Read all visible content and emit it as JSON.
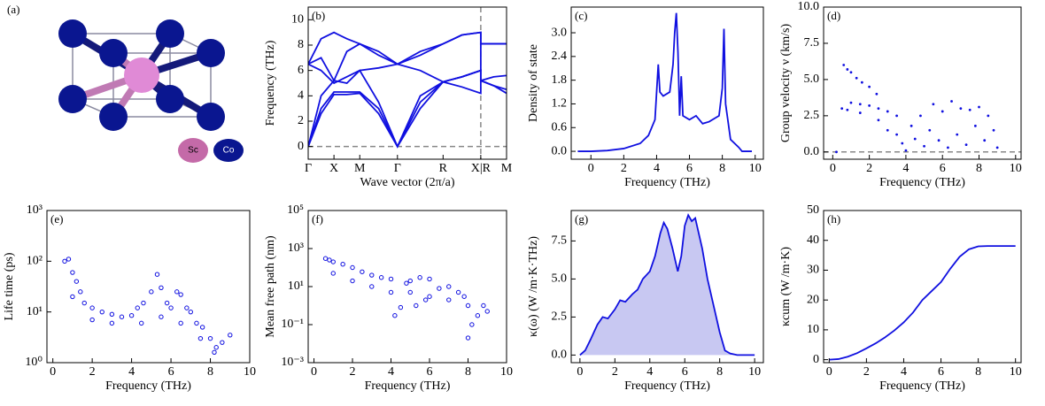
{
  "structure": {
    "label": "(a)",
    "legend": [
      "Sc",
      "Co"
    ]
  },
  "chart_data": [
    {
      "type": "line",
      "annotation": "(b)",
      "xlabel": "Wave vector (2π/a)",
      "ylabel": "Frequency (THz)",
      "x": [
        0,
        0.065,
        0.13,
        0.195,
        0.26,
        0.355,
        0.45,
        0.565,
        0.68,
        0.775,
        0.87,
        0.87,
        0.935,
        1.0
      ],
      "series": [
        {
          "color": "#1010e0",
          "values": [
            0,
            2.6,
            4.1,
            4.1,
            4.2,
            2.6,
            0,
            3.0,
            5.1,
            4.7,
            4.2,
            5.2,
            4.8,
            4.2
          ]
        },
        {
          "color": "#1010e0",
          "values": [
            0,
            3.0,
            4.3,
            4.3,
            4.3,
            3.0,
            0,
            3.5,
            5.1,
            5.5,
            6.0,
            5.2,
            5.5,
            5.6
          ]
        },
        {
          "color": "#1010e0",
          "values": [
            0,
            4.0,
            5.2,
            5.0,
            6.0,
            3.5,
            0,
            4.0,
            5.1,
            5.5,
            6.0,
            5.2,
            4.8,
            4.5
          ]
        },
        {
          "color": "#1010e0",
          "values": [
            6.5,
            6.0,
            5.0,
            5.5,
            6.0,
            6.2,
            6.5,
            6.0,
            5.1,
            5.5,
            6.0,
            8.1,
            8.1,
            8.1
          ]
        },
        {
          "color": "#1010e0",
          "values": [
            6.5,
            7.0,
            5.2,
            7.5,
            8.1,
            7.2,
            6.5,
            7.2,
            8.1,
            8.8,
            9.0,
            8.1,
            8.1,
            8.1
          ]
        },
        {
          "color": "#1010e0",
          "values": [
            6.5,
            8.5,
            9.0,
            8.5,
            8.1,
            7.5,
            6.5,
            7.5,
            8.1,
            8.8,
            9.0,
            8.1,
            8.1,
            8.1
          ]
        }
      ],
      "xlim": [
        0,
        1
      ],
      "ylim": [
        -1,
        11
      ],
      "xticks": [
        {
          "value": 0,
          "label": "Γ"
        },
        {
          "value": 0.13,
          "label": "X"
        },
        {
          "value": 0.26,
          "label": "M"
        },
        {
          "value": 0.45,
          "label": "Γ"
        },
        {
          "value": 0.68,
          "label": "R"
        },
        {
          "value": 0.87,
          "label": "X|R"
        },
        {
          "value": 1.0,
          "label": "M"
        }
      ],
      "yticks": [
        0,
        2,
        4,
        6,
        8,
        10
      ],
      "hlines": [
        0
      ],
      "vlines": [
        0.87
      ]
    },
    {
      "type": "line",
      "annotation": "(c)",
      "xlabel": "Frequency (THz)",
      "ylabel": "Density of state",
      "color": "#1010e0",
      "x": [
        -0.8,
        0,
        1,
        2,
        3,
        3.5,
        3.9,
        4.1,
        4.2,
        4.4,
        4.8,
        5.0,
        5.1,
        5.2,
        5.3,
        5.4,
        5.5,
        5.6,
        6.0,
        6.4,
        6.8,
        7.2,
        7.8,
        8.0,
        8.1,
        8.2,
        8.5,
        9.0,
        9.2,
        9.8
      ],
      "values": [
        0,
        0,
        0.02,
        0.07,
        0.2,
        0.4,
        0.8,
        2.2,
        1.5,
        1.4,
        1.5,
        2.2,
        3.0,
        3.5,
        2.5,
        0.9,
        1.9,
        0.9,
        0.8,
        0.9,
        0.7,
        0.75,
        0.9,
        1.6,
        3.1,
        1.2,
        0.3,
        0.1,
        0,
        0
      ],
      "xlim": [
        -1.2,
        10.5
      ],
      "ylim": [
        -0.2,
        3.65
      ],
      "xticks": [
        0,
        2,
        4,
        6,
        8,
        10
      ],
      "yticks": [
        {
          "value": 0,
          "label": "0.0"
        },
        0.6,
        1.2,
        1.8,
        2.4,
        {
          "value": 3,
          "label": "3.0"
        }
      ]
    },
    {
      "type": "scatter",
      "annotation": "(d)",
      "xlabel": "Frequency (THz)",
      "ylabel": "Group velocity ν (km/s)",
      "color": "#1010e0",
      "marker": "dot",
      "x": [
        0.6,
        0.8,
        1.0,
        1.3,
        1.6,
        2.0,
        2.4,
        0.5,
        1.0,
        1.5,
        2.0,
        2.5,
        3.0,
        3.5,
        0.8,
        1.5,
        2.5,
        3.0,
        3.5,
        3.8,
        4.0,
        4.3,
        4.5,
        4.8,
        5.0,
        5.3,
        5.5,
        5.8,
        6.0,
        6.3,
        6.5,
        6.8,
        7.0,
        7.3,
        7.5,
        7.8,
        8.0,
        8.3,
        8.5,
        8.8,
        9.0,
        0.2
      ],
      "values": [
        6.0,
        5.7,
        5.5,
        5.1,
        4.8,
        4.5,
        4.0,
        3.0,
        3.4,
        3.3,
        3.2,
        3.0,
        2.8,
        2.5,
        2.9,
        2.7,
        2.2,
        1.5,
        1.2,
        0.6,
        0.1,
        1.8,
        0.9,
        2.5,
        0.4,
        1.5,
        3.3,
        0.8,
        2.8,
        0.3,
        3.5,
        1.2,
        3.0,
        0.5,
        2.9,
        1.8,
        3.1,
        0.8,
        2.5,
        1.5,
        0.3,
        0
      ],
      "xlim": [
        -0.5,
        10.3
      ],
      "ylim": [
        -0.5,
        10
      ],
      "xticks": [
        0,
        2,
        4,
        6,
        8,
        10
      ],
      "yticks": [
        {
          "value": 0,
          "label": "0.0"
        },
        2.5,
        {
          "value": 5,
          "label": "5.0"
        },
        7.5,
        {
          "value": 10,
          "label": "10.0"
        }
      ],
      "hlines": [
        0
      ]
    },
    {
      "type": "scatter",
      "annotation": "(e)",
      "xlabel": "Frequency (THz)",
      "ylabel": "Life time (ps)",
      "color": "#1010e0",
      "marker": "open-circle",
      "log_y": true,
      "x": [
        0.6,
        0.8,
        1.0,
        1.2,
        1.4,
        1.6,
        2.0,
        2.5,
        3.0,
        3.5,
        4.0,
        4.3,
        4.6,
        5.0,
        5.3,
        5.5,
        5.8,
        6.0,
        6.3,
        6.5,
        6.8,
        7.0,
        7.3,
        7.6,
        8.0,
        8.3,
        8.6,
        9.0,
        1.0,
        2.0,
        3.0,
        4.5,
        5.5,
        6.5,
        7.5,
        8.2
      ],
      "values": [
        100,
        110,
        60,
        40,
        25,
        15,
        12,
        10,
        9,
        8,
        8.5,
        12,
        15,
        25,
        55,
        30,
        15,
        12,
        25,
        22,
        12,
        10,
        6,
        5,
        3,
        2,
        2.5,
        3.5,
        20,
        7,
        6,
        6,
        8,
        6,
        3,
        1.6
      ],
      "xlim": [
        -0.3,
        10
      ],
      "ylim": [
        1,
        1000
      ],
      "xticks": [
        0,
        2,
        4,
        6,
        8,
        10
      ],
      "yticks": [
        {
          "value": 1,
          "label": "10⁰"
        },
        {
          "value": 10,
          "label": "10¹"
        },
        {
          "value": 100,
          "label": "10²"
        },
        {
          "value": 1000,
          "label": "10³"
        }
      ]
    },
    {
      "type": "scatter",
      "annotation": "(f)",
      "xlabel": "Frequency (THz)",
      "ylabel": "Mean free path (nm)",
      "color": "#1010e0",
      "marker": "open-circle",
      "log_y": true,
      "x": [
        0.6,
        0.8,
        1.0,
        1.5,
        2.0,
        2.5,
        3.0,
        3.5,
        4.0,
        4.2,
        4.5,
        4.8,
        5.0,
        5.3,
        5.5,
        5.8,
        6.0,
        6.5,
        7.0,
        7.5,
        7.8,
        8.0,
        8.2,
        8.5,
        9.0,
        1.0,
        2.0,
        3.0,
        4.0,
        5.0,
        6.0,
        7.0,
        8.0,
        8.8
      ],
      "values": [
        300,
        250,
        200,
        150,
        100,
        60,
        40,
        30,
        25,
        0.3,
        0.8,
        15,
        20,
        1.0,
        30,
        2,
        25,
        8,
        10,
        5,
        3,
        0.02,
        0.1,
        0.3,
        0.5,
        50,
        20,
        10,
        5,
        5,
        3,
        2,
        1,
        1
      ],
      "xlim": [
        -0.3,
        10
      ],
      "ylim": [
        0.001,
        100000
      ],
      "xticks": [
        0,
        2,
        4,
        6,
        8,
        10
      ],
      "yticks": [
        {
          "value": 0.001,
          "label": "10⁻³"
        },
        {
          "value": 0.1,
          "label": "10⁻¹"
        },
        {
          "value": 10,
          "label": "10¹"
        },
        {
          "value": 1000,
          "label": "10³"
        },
        {
          "value": 100000,
          "label": "10⁵"
        }
      ]
    },
    {
      "type": "area",
      "annotation": "(g)",
      "xlabel": "Frequency (THz)",
      "ylabel": "κ(ω) (W /m·K·THz)",
      "color": "#1010e0",
      "fill_color": "#c8c8f2",
      "x": [
        0,
        0.3,
        0.6,
        1.0,
        1.3,
        1.6,
        2.0,
        2.3,
        2.6,
        3.0,
        3.3,
        3.6,
        4.0,
        4.3,
        4.6,
        4.8,
        5.0,
        5.3,
        5.6,
        5.8,
        6.0,
        6.2,
        6.4,
        6.6,
        6.8,
        7.0,
        7.3,
        7.6,
        8.0,
        8.3,
        8.6,
        9.0,
        9.5,
        10
      ],
      "values": [
        0,
        0.3,
        1.0,
        2.0,
        2.5,
        2.4,
        3.0,
        3.6,
        3.5,
        4.0,
        4.3,
        5.0,
        5.5,
        6.5,
        8.0,
        8.7,
        8.3,
        7.0,
        5.5,
        6.5,
        8.5,
        9.2,
        8.8,
        9.0,
        8.0,
        7.0,
        5.0,
        3.5,
        1.5,
        0.3,
        0.1,
        0,
        0,
        0
      ],
      "xlim": [
        -0.5,
        10.5
      ],
      "ylim": [
        -0.5,
        9.5
      ],
      "xticks": [
        0,
        2,
        4,
        6,
        8,
        10
      ],
      "yticks": [
        {
          "value": 0,
          "label": "0.0"
        },
        2.5,
        {
          "value": 5,
          "label": "5.0"
        },
        7.5
      ]
    },
    {
      "type": "line",
      "annotation": "(h)",
      "xlabel": "Frequency (THz)",
      "ylabel": "κcum (W /m·K)",
      "color": "#1010e0",
      "x": [
        0,
        0.5,
        1,
        1.5,
        2,
        2.5,
        3,
        3.5,
        4,
        4.5,
        5,
        5.5,
        6,
        6.5,
        7,
        7.5,
        8,
        8.5,
        9,
        10
      ],
      "values": [
        0,
        0.2,
        1,
        2.2,
        3.8,
        5.5,
        7.5,
        9.8,
        12.5,
        15.8,
        20,
        23,
        26,
        30.5,
        34.5,
        37,
        38,
        38.1,
        38.1,
        38.1
      ],
      "xlim": [
        -0.3,
        10.3
      ],
      "ylim": [
        -1,
        50
      ],
      "xticks": [
        0,
        2,
        4,
        6,
        8,
        10
      ],
      "yticks": [
        0,
        10,
        20,
        30,
        40,
        50
      ]
    }
  ]
}
